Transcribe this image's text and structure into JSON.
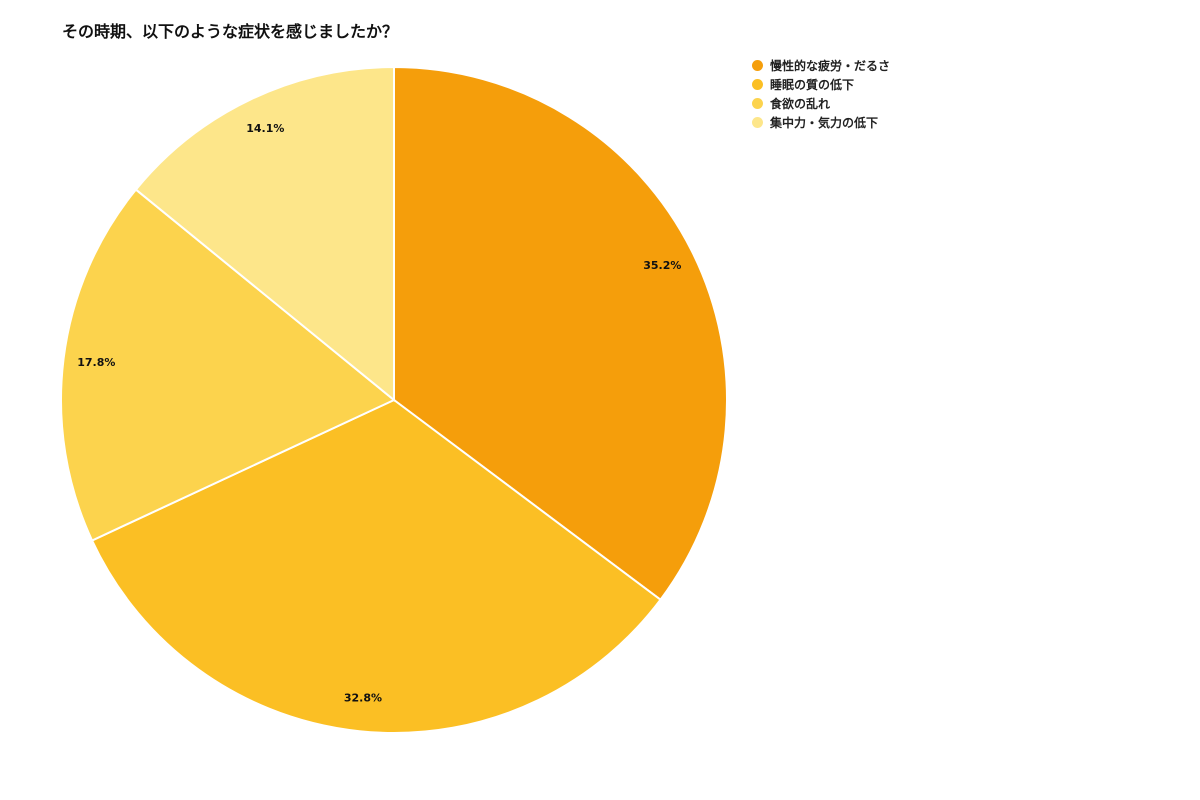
{
  "chart_data": {
    "type": "pie",
    "title": "その時期、以下のような症状を感じましたか？",
    "slices": [
      {
        "label": "慢性的な疲労・だるさ",
        "value": 35.2,
        "display": "35.2%",
        "color": "#F59E0B"
      },
      {
        "label": "睡眠の質の低下",
        "value": 32.8,
        "display": "32.8%",
        "color": "#FBBF24"
      },
      {
        "label": "食欲の乱れ",
        "value": 17.8,
        "display": "17.8%",
        "color": "#FCD34D"
      },
      {
        "label": "集中力・気力の低下",
        "value": 14.1,
        "display": "14.1%",
        "color": "#FDE68A"
      }
    ],
    "legend_position": "top-right"
  }
}
